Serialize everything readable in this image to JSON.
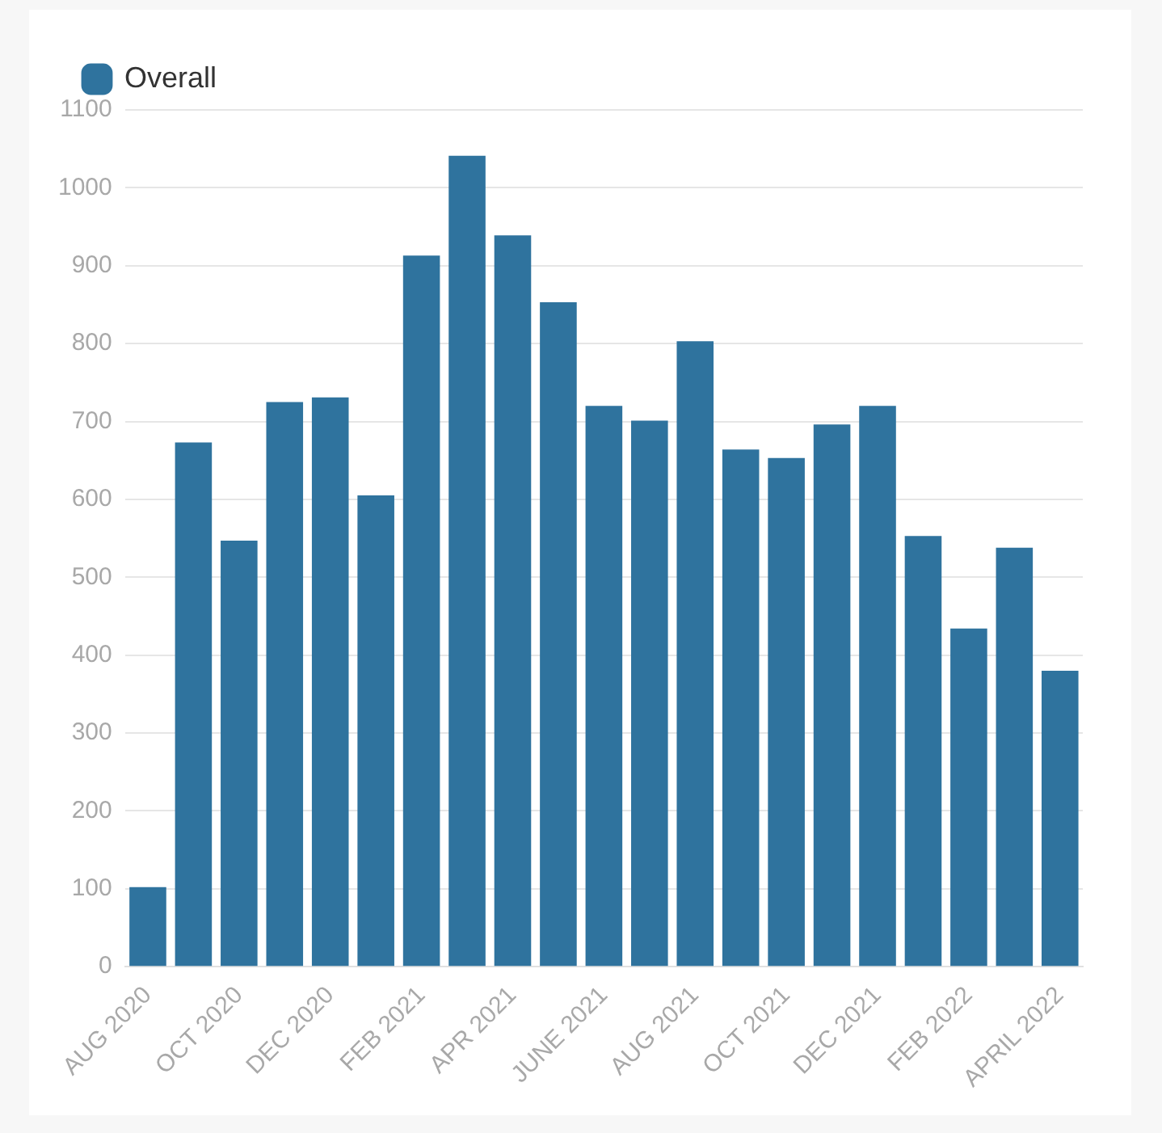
{
  "chart_data": {
    "type": "bar",
    "categories": [
      "AUG 2020",
      null,
      "OCT 2020",
      null,
      "DEC 2020",
      null,
      "FEB 2021",
      null,
      "APR 2021",
      null,
      "JUNE 2021",
      null,
      "AUG 2021",
      null,
      "OCT 2021",
      null,
      "DEC 2021",
      null,
      "FEB 2022",
      null,
      "APRIL 2022"
    ],
    "series": [
      {
        "name": "Overall",
        "color": "#2f739e",
        "values": [
          102,
          673,
          547,
          725,
          731,
          605,
          913,
          1041,
          939,
          853,
          720,
          701,
          803,
          664,
          653,
          696,
          720,
          553,
          434,
          538,
          380
        ]
      }
    ],
    "ylim": [
      0,
      1100
    ],
    "yticks": [
      0,
      100,
      200,
      300,
      400,
      500,
      600,
      700,
      800,
      900,
      1000,
      1100
    ],
    "grid": "y",
    "legend": "top left"
  }
}
